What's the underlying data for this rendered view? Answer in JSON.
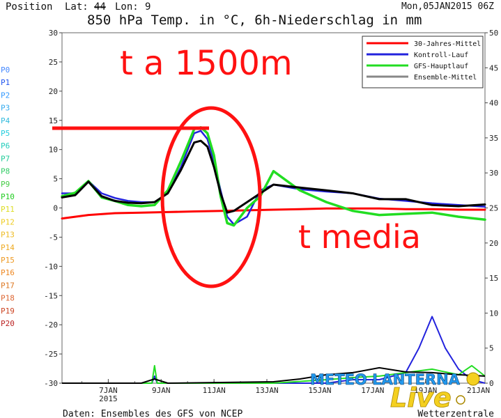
{
  "header": {
    "position_label": "Position",
    "lat_label": "Lat:",
    "lat_value": "44",
    "lon_label": "Lon:",
    "lon_value": "9",
    "run": "Mon,05JAN2015 06Z",
    "title": "850 hPa Temp. in °C, 6h-Niederschlag in mm"
  },
  "footer": {
    "source": "Daten: Ensembles des GFS von NCEP",
    "credit": "Wetterzentrale"
  },
  "watermark": {
    "text": "METEO LANTERNA",
    "script": "Live"
  },
  "annotations": {
    "top": "t a 1500m",
    "bottom": "t media"
  },
  "colors": {
    "climate": "#ff0000",
    "control": "#2222dd",
    "gfs": "#22dd22",
    "mean_legend": "#888888",
    "mean_line": "#000000",
    "annotation": "#ff0000"
  },
  "chart_data": {
    "type": "line",
    "title": "850 hPa Temp. in °C, 6h-Niederschlag in mm",
    "x_unit": "days from 05JAN2015 06Z",
    "xlim": [
      0,
      16
    ],
    "ylim": [
      -30,
      30
    ],
    "y2lim": [
      0,
      50
    ],
    "y_ticks": [
      30,
      25,
      20,
      15,
      10,
      5,
      0,
      -5,
      -10,
      -15,
      -20,
      -25,
      -30
    ],
    "y2_ticks": [
      50,
      45,
      40,
      35,
      30,
      25,
      20,
      15,
      10,
      5,
      0
    ],
    "x_ticks": [
      {
        "x": 1.75,
        "label": "7JAN",
        "sub": "2015"
      },
      {
        "x": 3.75,
        "label": "9JAN",
        "sub": ""
      },
      {
        "x": 5.75,
        "label": "11JAN",
        "sub": ""
      },
      {
        "x": 7.75,
        "label": "13JAN",
        "sub": ""
      },
      {
        "x": 9.75,
        "label": "15JAN",
        "sub": ""
      },
      {
        "x": 11.75,
        "label": "17JAN",
        "sub": ""
      },
      {
        "x": 13.75,
        "label": "19JAN",
        "sub": ""
      },
      {
        "x": 15.75,
        "label": "21JAN",
        "sub": ""
      }
    ],
    "legend": [
      {
        "name": "30-Jahres-Mittel",
        "color": "#ff0000"
      },
      {
        "name": "Kontroll-Lauf",
        "color": "#2222dd"
      },
      {
        "name": "GFS-Hauptlauf",
        "color": "#22dd22"
      },
      {
        "name": "Ensemble-Mittel",
        "color": "#888888"
      }
    ],
    "member_labels": [
      {
        "name": "P0",
        "color": "#4488ff"
      },
      {
        "name": "P1",
        "color": "#2255ee"
      },
      {
        "name": "P2",
        "color": "#3399ff"
      },
      {
        "name": "P3",
        "color": "#33aaee"
      },
      {
        "name": "P4",
        "color": "#33bbdd"
      },
      {
        "name": "P5",
        "color": "#22ccdd"
      },
      {
        "name": "P6",
        "color": "#22ccbb"
      },
      {
        "name": "P7",
        "color": "#22cc99"
      },
      {
        "name": "P8",
        "color": "#33cc66"
      },
      {
        "name": "P9",
        "color": "#44cc44"
      },
      {
        "name": "P10",
        "color": "#22cc22"
      },
      {
        "name": "P11",
        "color": "#dddd22"
      },
      {
        "name": "P12",
        "color": "#eecc22"
      },
      {
        "name": "P13",
        "color": "#eebb22"
      },
      {
        "name": "P14",
        "color": "#eeaa22"
      },
      {
        "name": "P15",
        "color": "#ee9922"
      },
      {
        "name": "P16",
        "color": "#ee8822"
      },
      {
        "name": "P17",
        "color": "#dd7722"
      },
      {
        "name": "P18",
        "color": "#dd6633"
      },
      {
        "name": "P19",
        "color": "#cc4422"
      },
      {
        "name": "P20",
        "color": "#bb2222"
      }
    ],
    "series": [
      {
        "name": "30-Jahres-Mittel",
        "color": "#ff0000",
        "x": [
          0,
          1,
          2,
          3,
          4,
          5,
          6,
          7,
          8,
          9,
          10,
          11,
          12,
          13,
          14,
          15,
          16
        ],
        "y": [
          -1.8,
          -1.2,
          -0.9,
          -0.8,
          -0.7,
          -0.6,
          -0.5,
          -0.4,
          -0.3,
          -0.2,
          -0.1,
          -0.1,
          -0.1,
          -0.2,
          -0.2,
          -0.3,
          -0.3
        ]
      },
      {
        "name": "Kontroll-Lauf",
        "color": "#2222dd",
        "x": [
          0,
          0.5,
          1,
          1.5,
          2,
          2.5,
          3,
          3.5,
          4,
          4.5,
          5,
          5.25,
          5.5,
          5.75,
          6,
          6.25,
          6.5,
          7,
          7.5,
          8,
          9,
          10,
          11,
          12,
          13,
          14,
          15,
          16
        ],
        "y": [
          2.5,
          2.5,
          4.6,
          2.5,
          1.7,
          1.2,
          1.0,
          1.0,
          2.5,
          7,
          12.8,
          13.2,
          11.8,
          8,
          3,
          -1.5,
          -2.8,
          -1.5,
          3,
          4,
          3.2,
          2.8,
          2.5,
          1.6,
          1.2,
          0.8,
          0.5,
          0.2
        ]
      },
      {
        "name": "GFS-Hauptlauf",
        "color": "#22dd22",
        "x": [
          0,
          0.5,
          1,
          1.5,
          2,
          2.5,
          3,
          3.5,
          4,
          4.5,
          5,
          5.25,
          5.5,
          5.75,
          6,
          6.25,
          6.5,
          7,
          7.5,
          8,
          9,
          10,
          11,
          12,
          13,
          14,
          15,
          16
        ],
        "y": [
          2.0,
          2.6,
          4.6,
          1.8,
          1.2,
          0.5,
          0.3,
          0.5,
          3,
          8,
          13.5,
          13.8,
          12.8,
          9,
          2,
          -2.6,
          -3.0,
          0,
          2,
          6.3,
          3,
          1,
          -0.5,
          -1.2,
          -1,
          -0.8,
          -1.5,
          -2
        ]
      },
      {
        "name": "Ensemble-Mittel",
        "color": "#000000",
        "x": [
          0,
          0.5,
          1,
          1.5,
          2,
          2.5,
          3,
          3.5,
          4,
          4.5,
          5,
          5.25,
          5.5,
          5.75,
          6,
          6.25,
          6.5,
          7,
          7.5,
          8,
          9,
          10,
          11,
          12,
          13,
          14,
          15,
          16
        ],
        "y": [
          1.8,
          2.2,
          4.5,
          2.0,
          1.2,
          0.9,
          0.8,
          1.0,
          2.5,
          6.5,
          11.2,
          11.5,
          10.5,
          7,
          2.5,
          -0.8,
          -0.5,
          1,
          2.5,
          4,
          3.5,
          3,
          2.5,
          1.5,
          1.5,
          0.5,
          0.3,
          0.6
        ]
      }
    ],
    "precip_series": [
      {
        "name": "Kontroll-Lauf (Niederschlag)",
        "color": "#2222dd",
        "x": [
          0,
          3,
          3.4,
          3.5,
          3.6,
          4,
          8,
          10,
          11,
          12,
          13,
          13.5,
          14,
          14.5,
          15,
          15.5,
          16
        ],
        "y2": [
          0,
          0,
          0,
          1,
          0,
          0,
          0,
          0,
          0.5,
          0.5,
          1.5,
          5,
          9.5,
          5,
          2,
          0.5,
          0
        ]
      },
      {
        "name": "GFS-Hauptlauf (Niederschlag)",
        "color": "#22dd22",
        "x": [
          0,
          3,
          3.4,
          3.5,
          3.6,
          4,
          8,
          10,
          11,
          12,
          13,
          14,
          15,
          15.5,
          16
        ],
        "y2": [
          0,
          0,
          0,
          2.5,
          0,
          0,
          0,
          0.5,
          0.8,
          1,
          1.5,
          2,
          1.2,
          2.5,
          1
        ]
      },
      {
        "name": "Ensemble-Mittel (Niederschlag)",
        "color": "#000000",
        "x": [
          0,
          3,
          3.5,
          4,
          8,
          9,
          10,
          11,
          12,
          13,
          14,
          15,
          16
        ],
        "y2": [
          0,
          0,
          0.6,
          0,
          0.2,
          0.6,
          1.2,
          1.5,
          2.2,
          1.6,
          1.5,
          1.2,
          1.0
        ]
      }
    ]
  }
}
